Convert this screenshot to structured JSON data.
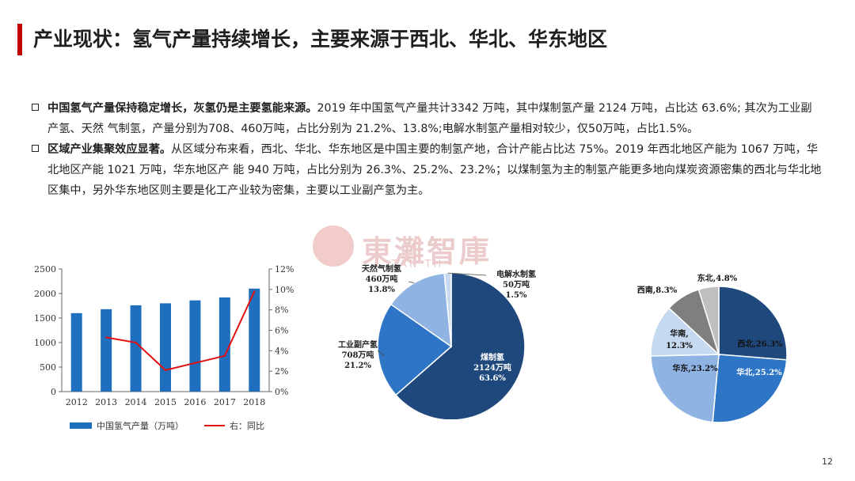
{
  "page": {
    "title": "产业现状：氢气产量持续增长，主要来源于西北、华北、华东地区",
    "page_number": "12"
  },
  "bullets": [
    {
      "bold": "中国氢气产量保持稳定增长，灰氢仍是主要氢能来源。",
      "text": "2019 年中国氢气产量共计3342 万吨，其中煤制氢产量 2124 万吨，占比达 63.6%; 其次为工业副产氢、天然 气制氢，产量分别为708、460万吨，占比分别为  21.2%、13.8%;电解水制氢产量相对较少，仅50万吨，占比1.5%。"
    },
    {
      "bold": "区域产业集聚效应显著。",
      "text": "从区域分布来看，西北、华北、华东地区是中国主要的制氢产地，合计产能占比达 75%。2019 年西北地区产能为 1067 万吨，华北地区产能 1021 万吨，华东地区产 能 940 万吨，占比分别为 26.3%、25.2%、23.2%；以煤制氢为主的制氢产能更多地向煤炭资源密集的西北与华北地区集中，另外华东地区则主要是化工产业较为密集，主要以工业副产氢为主。"
    }
  ],
  "watermark": {
    "text": "東灘智庫",
    "sub": "TAN TH"
  },
  "chart_data": [
    {
      "type": "bar",
      "categories": [
        "2012",
        "2013",
        "2014",
        "2015",
        "2016",
        "2017",
        "2018"
      ],
      "series": [
        {
          "name": "中国氢气产量（万吨）",
          "kind": "bar",
          "axis": "left",
          "color": "#1f6fbf",
          "values": [
            1600,
            1680,
            1760,
            1800,
            1860,
            1920,
            2100
          ]
        },
        {
          "name": "右：同比",
          "kind": "line",
          "axis": "right",
          "color": "#e01010",
          "values": [
            null,
            5.3,
            4.8,
            2.1,
            2.8,
            3.5,
            9.8
          ]
        }
      ],
      "ylim": [
        0,
        2500
      ],
      "yticks": [
        0,
        500,
        1000,
        1500,
        2000,
        2500
      ],
      "y2lim": [
        0,
        12
      ],
      "y2ticks": [
        "0%",
        "2%",
        "4%",
        "6%",
        "8%",
        "10%",
        "12%"
      ],
      "legend_position": "bottom",
      "grid": false
    },
    {
      "type": "pie",
      "slices": [
        {
          "label": "煤制氢",
          "amount": "2124万吨",
          "pct": "63.6%",
          "value": 63.6,
          "color": "#1f497d"
        },
        {
          "label": "工业副产氢",
          "amount": "708万吨",
          "pct": "21.2%",
          "value": 21.2,
          "color": "#2e75c6"
        },
        {
          "label": "天然气制氢",
          "amount": "460万吨",
          "pct": "13.8%",
          "value": 13.8,
          "color": "#8fb4e3"
        },
        {
          "label": "电解水制氢",
          "amount": "50万吨",
          "pct": "1.5%",
          "value": 1.5,
          "color": "#c8daf0"
        }
      ]
    },
    {
      "type": "pie",
      "slices": [
        {
          "label": "西北,26.3%",
          "value": 26.3,
          "color": "#1f497d"
        },
        {
          "label": "华北,25.2%",
          "value": 25.2,
          "color": "#2e75c6"
        },
        {
          "label": "华东,23.2%",
          "value": 23.2,
          "color": "#8fb4e3"
        },
        {
          "label": "华南,",
          "label2": "12.3%",
          "value": 12.3,
          "color": "#c5d9f1"
        },
        {
          "label": "西南,8.3%",
          "value": 8.3,
          "color": "#7f7f7f"
        },
        {
          "label": "东北,4.8%",
          "value": 4.8,
          "color": "#bfbfbf"
        }
      ]
    }
  ]
}
